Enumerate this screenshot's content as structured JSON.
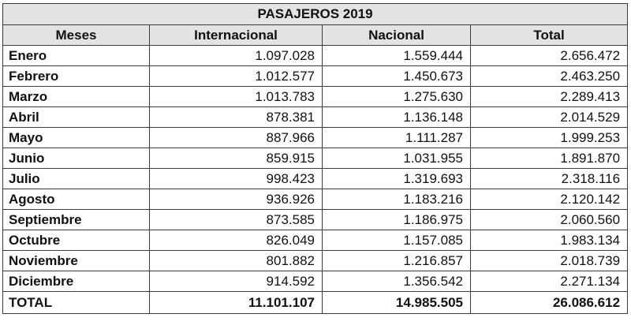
{
  "table": {
    "title": "PASAJEROS 2019",
    "headers": [
      "Meses",
      "Internacional",
      "Nacional",
      "Total"
    ],
    "rows": [
      [
        "Enero",
        "1.097.028",
        "1.559.444",
        "2.656.472"
      ],
      [
        "Febrero",
        "1.012.577",
        "1.450.673",
        "2.463.250"
      ],
      [
        "Marzo",
        "1.013.783",
        "1.275.630",
        "2.289.413"
      ],
      [
        "Abril",
        "878.381",
        "1.136.148",
        "2.014.529"
      ],
      [
        "Mayo",
        "887.966",
        "1.111.287",
        "1.999.253"
      ],
      [
        "Junio",
        "859.915",
        "1.031.955",
        "1.891.870"
      ],
      [
        "Julio",
        "998.423",
        "1.319.693",
        "2.318.116"
      ],
      [
        "Agosto",
        "936.926",
        "1.183.216",
        "2.120.142"
      ],
      [
        "Septiembre",
        "873.585",
        "1.186.975",
        "2.060.560"
      ],
      [
        "Octubre",
        "826.049",
        "1.157.085",
        "1.983.134"
      ],
      [
        "Noviembre",
        "801.882",
        "1.216.857",
        "2.018.739"
      ],
      [
        "Diciembre",
        "914.592",
        "1.356.542",
        "2.271.134"
      ]
    ],
    "total_row": [
      "TOTAL",
      "11.101.107",
      "14.985.505",
      "26.086.612"
    ]
  },
  "colors": {
    "header_background": "#e3e3e3",
    "border": "#3a3a3a"
  }
}
